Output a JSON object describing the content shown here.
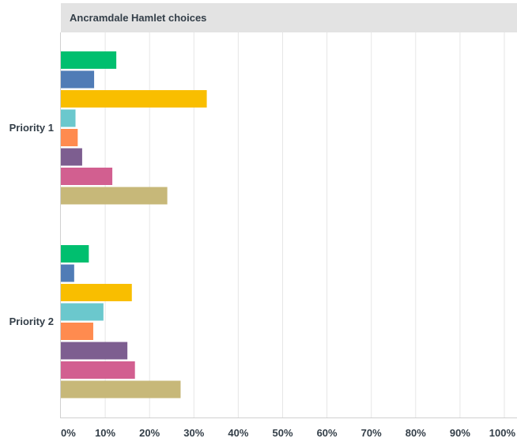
{
  "chart_data": {
    "type": "bar",
    "orientation": "horizontal",
    "title": "Ancramdale Hamlet choices",
    "categories": [
      "Priority 1",
      "Priority 2"
    ],
    "xlim": [
      0,
      100
    ],
    "x_ticks": [
      "0%",
      "10%",
      "20%",
      "30%",
      "40%",
      "50%",
      "60%",
      "70%",
      "80%",
      "90%",
      "100%"
    ],
    "grid": true,
    "legend": "none",
    "series": [
      {
        "color": "#00bf6f",
        "values": [
          12.5,
          6.3
        ]
      },
      {
        "color": "#507cb6",
        "values": [
          7.5,
          3.0
        ]
      },
      {
        "color": "#f9be00",
        "values": [
          32.9,
          16.0
        ]
      },
      {
        "color": "#6bc8cd",
        "values": [
          3.3,
          9.6
        ]
      },
      {
        "color": "#ff8b4f",
        "values": [
          3.8,
          7.3
        ]
      },
      {
        "color": "#7d5e90",
        "values": [
          4.8,
          15.0
        ]
      },
      {
        "color": "#d25f90",
        "values": [
          11.6,
          16.7
        ]
      },
      {
        "color": "#c7b879",
        "values": [
          24.0,
          27.0
        ]
      }
    ]
  }
}
